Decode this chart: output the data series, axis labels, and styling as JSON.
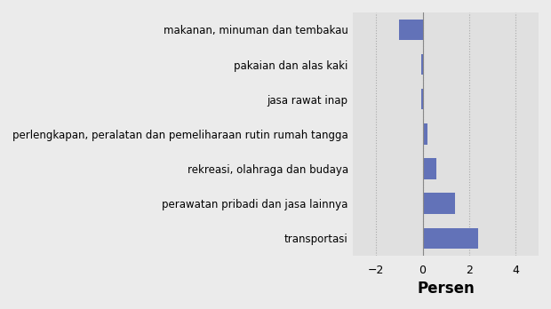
{
  "categories": [
    "makanan, minuman dan tembakau",
    "pakaian dan alas kaki",
    "jasa rawat inap",
    "perlengkapan, peralatan dan pemeliharaan rutin rumah tangga",
    "rekreasi, olahraga dan budaya",
    "perawatan pribadi dan jasa lainnya",
    "transportasi"
  ],
  "values": [
    -1.0,
    -0.04,
    -0.04,
    0.2,
    0.6,
    1.4,
    2.4
  ],
  "bar_color": "#6272b8",
  "background_color": "#ebebeb",
  "plot_bg_color": "#e0e0e0",
  "xlabel": "Persen",
  "xlim": [
    -3,
    5
  ],
  "xticks": [
    -2,
    0,
    2,
    4
  ],
  "xlabel_fontsize": 12,
  "label_fontsize": 8.5,
  "tick_fontsize": 9
}
